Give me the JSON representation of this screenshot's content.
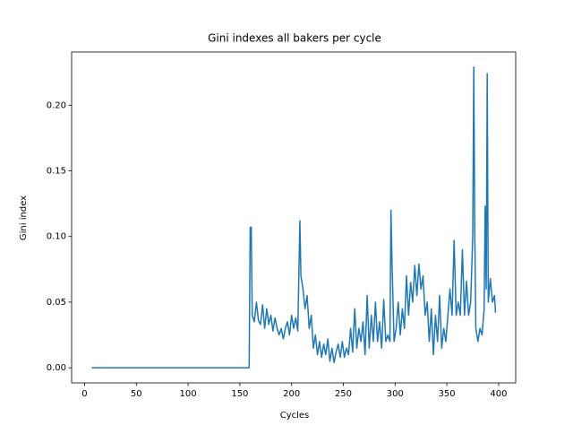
{
  "chart_data": {
    "type": "line",
    "title": "Gini indexes all bakers per cycle",
    "x_label": "Cycles",
    "y_label": "Gini index",
    "x": [
      7,
      159,
      160,
      161,
      162,
      164,
      166,
      168,
      170,
      172,
      174,
      176,
      178,
      180,
      182,
      184,
      186,
      188,
      190,
      192,
      194,
      196,
      198,
      200,
      202,
      204,
      206,
      207,
      208,
      209,
      211,
      213,
      215,
      217,
      219,
      221,
      223,
      225,
      227,
      229,
      231,
      233,
      235,
      237,
      239,
      241,
      243,
      245,
      247,
      249,
      251,
      253,
      255,
      257,
      259,
      261,
      263,
      265,
      267,
      269,
      271,
      273,
      275,
      277,
      279,
      281,
      283,
      285,
      287,
      289,
      291,
      293,
      295,
      296,
      297,
      299,
      301,
      303,
      305,
      307,
      309,
      311,
      313,
      315,
      317,
      319,
      321,
      323,
      325,
      327,
      329,
      331,
      333,
      335,
      337,
      339,
      341,
      343,
      345,
      347,
      349,
      351,
      353,
      355,
      357,
      359,
      361,
      363,
      365,
      367,
      369,
      371,
      373,
      375,
      376,
      377,
      378,
      380,
      382,
      384,
      386,
      387,
      388,
      389,
      390,
      392,
      394,
      396,
      397
    ],
    "series": [
      {
        "name": "Gini index",
        "color": "#1f77b4",
        "values": [
          0,
          0,
          0.107,
          0.107,
          0.04,
          0.035,
          0.05,
          0.036,
          0.033,
          0.048,
          0.03,
          0.045,
          0.033,
          0.04,
          0.028,
          0.038,
          0.03,
          0.025,
          0.03,
          0.022,
          0.03,
          0.035,
          0.025,
          0.04,
          0.03,
          0.038,
          0.028,
          0.07,
          0.112,
          0.07,
          0.06,
          0.045,
          0.055,
          0.03,
          0.04,
          0.015,
          0.025,
          0.01,
          0.02,
          0.008,
          0.018,
          0.01,
          0.022,
          0.005,
          0.015,
          0.004,
          0.012,
          0.018,
          0.008,
          0.02,
          0.008,
          0.015,
          0.01,
          0.03,
          0.012,
          0.045,
          0.015,
          0.03,
          0.02,
          0.035,
          0.01,
          0.055,
          0.015,
          0.04,
          0.02,
          0.05,
          0.02,
          0.035,
          0.015,
          0.052,
          0.02,
          0.025,
          0.02,
          0.12,
          0.08,
          0.02,
          0.03,
          0.05,
          0.025,
          0.045,
          0.03,
          0.07,
          0.04,
          0.065,
          0.05,
          0.078,
          0.055,
          0.079,
          0.06,
          0.07,
          0.04,
          0.05,
          0.02,
          0.045,
          0.01,
          0.04,
          0.02,
          0.055,
          0.015,
          0.03,
          0.02,
          0.04,
          0.06,
          0.04,
          0.097,
          0.04,
          0.05,
          0.04,
          0.09,
          0.04,
          0.066,
          0.04,
          0.05,
          0.1,
          0.229,
          0.1,
          0.03,
          0.02,
          0.03,
          0.025,
          0.045,
          0.123,
          0.06,
          0.224,
          0.05,
          0.068,
          0.05,
          0.055,
          0.042
        ]
      }
    ],
    "xlim": [
      -12.5,
      416.5
    ],
    "ylim": [
      -0.0115,
      0.2405
    ],
    "xticks": [
      0,
      50,
      100,
      150,
      200,
      250,
      300,
      350,
      400
    ],
    "yticks": [
      {
        "value": 0,
        "label": "0.00"
      },
      0.05,
      {
        "value": 0.1,
        "label": "0.10"
      },
      0.15,
      {
        "value": 0.2,
        "label": "0.20"
      }
    ]
  }
}
